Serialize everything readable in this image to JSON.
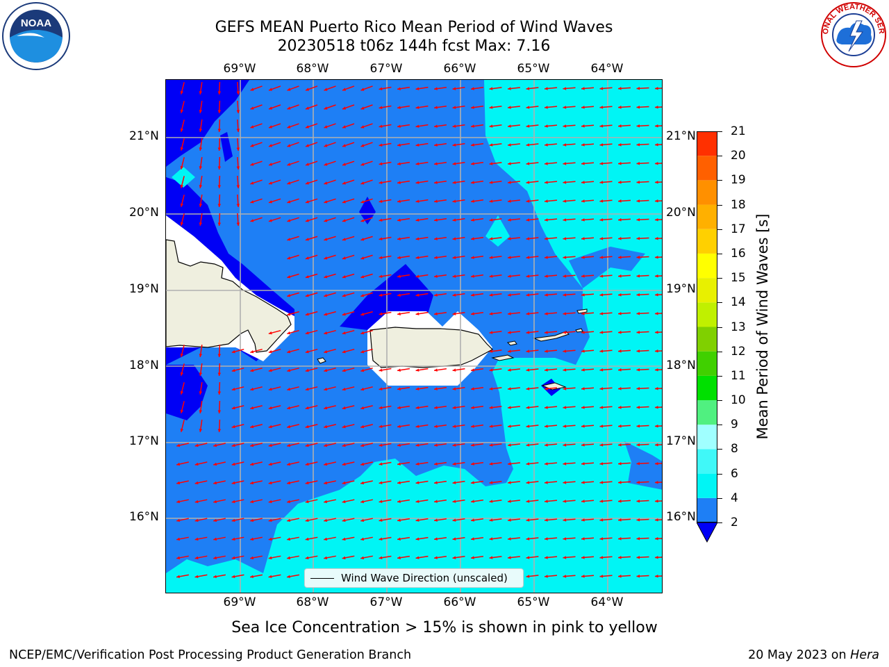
{
  "title": {
    "line1": "GEFS MEAN Puerto Rico Mean Period of Wind Waves",
    "line2": "20230518 t06z 144h fcst   Max: 7.16"
  },
  "logos": {
    "left": {
      "icon": "noaa-logo",
      "text": "NOAA"
    },
    "right": {
      "icon": "nws-logo",
      "text": "NATIONAL WEATHER SERVICE"
    }
  },
  "map": {
    "lon_labels": [
      "69°W",
      "68°W",
      "67°W",
      "66°W",
      "65°W",
      "64°W"
    ],
    "lat_labels": [
      "21°N",
      "20°N",
      "19°N",
      "18°N",
      "17°N",
      "16°N"
    ],
    "lon_range": [
      -69.99,
      -63.25
    ],
    "lat_range": [
      15.0,
      21.75
    ],
    "colors": {
      "band_2_4": "#1e7ff5",
      "band_below_2": "#0000f5",
      "band_4_6": "#00f5f5",
      "land": "#efefdf",
      "ice_free_white": "#ffffff",
      "grid": "#b0b0b0",
      "arrow": "#ff0000",
      "coast": "#000000"
    },
    "legend_label": "Wind Wave Direction (unscaled)"
  },
  "colorbar": {
    "label": "Mean Period of Wind Waves [s]",
    "ticks": [
      "2",
      "4",
      "6",
      "8",
      "9",
      "10",
      "11",
      "12",
      "13",
      "14",
      "15",
      "16",
      "17",
      "18",
      "19",
      "20",
      "21"
    ],
    "colors": [
      "#1e7ff5",
      "#00f5f5",
      "#40f8f8",
      "#a0ffff",
      "#50f080",
      "#00e000",
      "#40d000",
      "#80d000",
      "#c0f000",
      "#e8f000",
      "#ffff00",
      "#ffd000",
      "#ffb000",
      "#ff9000",
      "#ff6000",
      "#ff3000",
      "#ff0000"
    ],
    "under_color": "#0000f5"
  },
  "seaice_note": "Sea Ice Concentration > 15% is shown in pink to yellow",
  "footer": {
    "left": "NCEP/EMC/Verification Post Processing Product Generation Branch",
    "right_prefix": "20 May 2023 on ",
    "right_host": "Hera"
  }
}
